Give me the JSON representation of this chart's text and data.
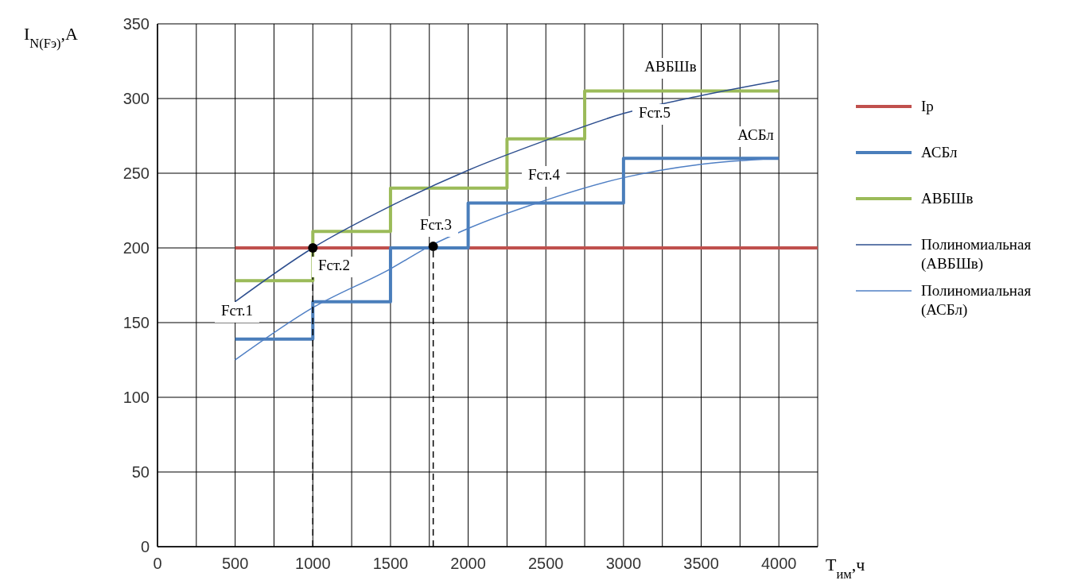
{
  "chart_data": {
    "type": "line",
    "xlabel": "T$_{им}$,ч",
    "ylabel": "I$_{N(Fэ)}$,A",
    "xlim": [
      0,
      4250
    ],
    "ylim": [
      0,
      350
    ],
    "xticks": [
      0,
      {
        "value": 250,
        "label": null
      },
      500,
      {
        "value": 750,
        "label": null
      },
      1000,
      {
        "value": 1250,
        "label": null
      },
      1500,
      {
        "value": 1750,
        "label": null
      },
      2000,
      {
        "value": 2250,
        "label": null
      },
      2500,
      {
        "value": 2750,
        "label": null
      },
      3000,
      {
        "value": 3250,
        "label": null
      },
      3500,
      {
        "value": 3750,
        "label": null
      },
      4000,
      {
        "value": 4250,
        "label": null
      }
    ],
    "yticks": [
      0,
      50,
      100,
      150,
      200,
      250,
      300,
      350
    ],
    "grid": true,
    "legend": "right",
    "series": [
      {
        "name": "Ip",
        "color": "#c0504d",
        "x": [
          500,
          4250
        ],
        "values": [
          200,
          200
        ]
      },
      {
        "name": "АСБл",
        "type": "step",
        "color": "#4a7ebb",
        "x": [
          500,
          1000,
          1500,
          2000,
          3000,
          4000
        ],
        "values": [
          139,
          164,
          200,
          230,
          260,
          260
        ]
      },
      {
        "name": "АВБШв",
        "type": "step",
        "color": "#9bbb59",
        "x": [
          500,
          1000,
          1500,
          2250,
          2750,
          4000
        ],
        "values": [
          178,
          211,
          240,
          273,
          305,
          305
        ]
      },
      {
        "name": "Полиномиальная (АВБШв)",
        "color": "#2e4f8f",
        "x": [
          500,
          1000,
          1500,
          2000,
          2500,
          3000,
          3500,
          4000
        ],
        "values": [
          164,
          200,
          228,
          252,
          272,
          290,
          302,
          312
        ]
      },
      {
        "name": "Полиномиальная (АСБл)",
        "color": "#4f7fc4",
        "x": [
          500,
          1000,
          1500,
          1750,
          2000,
          2500,
          3000,
          3500,
          4000
        ],
        "values": [
          125,
          160,
          186,
          201,
          213,
          232,
          247,
          256,
          260
        ]
      },
      {
        "type": "line",
        "color": "#000000",
        "line_style": "dashed",
        "x": [
          1000,
          1000
        ],
        "values": [
          0,
          200
        ]
      },
      {
        "type": "line",
        "color": "#000000",
        "line_style": "dashed",
        "x": [
          1775,
          1775
        ],
        "values": [
          0,
          200
        ]
      },
      {
        "type": "scatter",
        "color": "#000000",
        "marker": "circle",
        "x": [
          1000,
          1775
        ],
        "values": [
          200,
          201
        ]
      }
    ],
    "annotations": [
      "Fст.1",
      "Fст.2",
      "Fст.3",
      "Fст.4",
      "Fст.5",
      "АВБШв",
      "АСБл"
    ]
  }
}
